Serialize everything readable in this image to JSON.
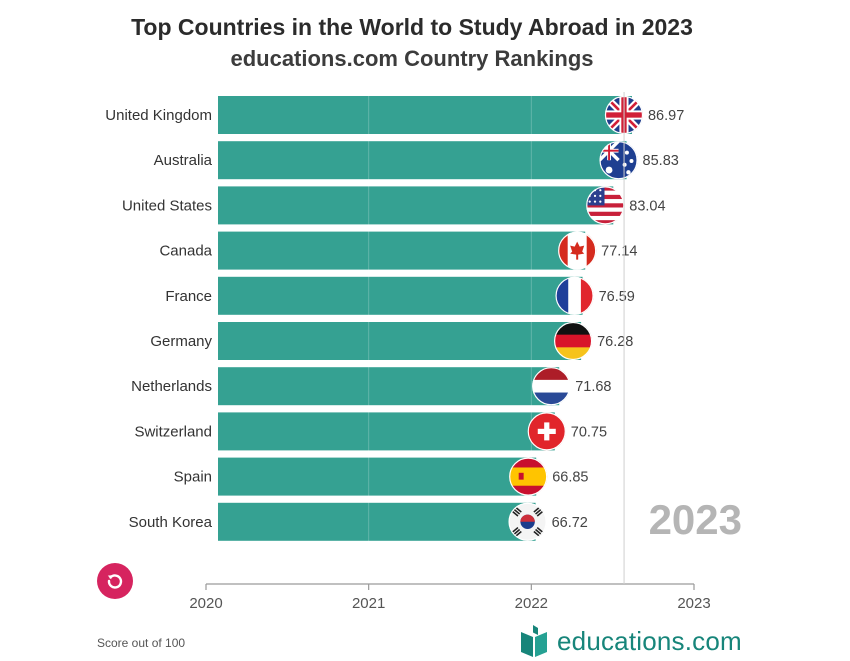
{
  "header": {
    "title": "Top Countries in the World to Study Abroad in 2023",
    "subtitle": "educations.com Country Rankings"
  },
  "colors": {
    "bar": "#35a192",
    "accent": "#d6245f",
    "brand": "#17857a",
    "year": "#b5b5b5"
  },
  "chart_data": {
    "type": "bar",
    "orientation": "horizontal",
    "animated_year": "2023",
    "title": "Top Countries in the World to Study Abroad in 2023",
    "subtitle": "educations.com Country Rankings",
    "categories": [
      "United Kingdom",
      "Australia",
      "United States",
      "Canada",
      "France",
      "Germany",
      "Netherlands",
      "Switzerland",
      "Spain",
      "South Korea"
    ],
    "values": [
      86.97,
      85.83,
      83.04,
      77.14,
      76.59,
      76.28,
      71.68,
      70.75,
      66.85,
      66.72
    ],
    "value_labels": [
      "86.97",
      "85.83",
      "83.04",
      "77.14",
      "76.59",
      "76.28",
      "71.68",
      "70.75",
      "66.85",
      "66.72"
    ],
    "flag_icons": [
      "uk-flag-icon",
      "australia-flag-icon",
      "usa-flag-icon",
      "canada-flag-icon",
      "france-flag-icon",
      "germany-flag-icon",
      "netherlands-flag-icon",
      "switzerland-flag-icon",
      "spain-flag-icon",
      "south-korea-flag-icon"
    ],
    "value_axis_range": [
      0,
      100
    ],
    "timeline_axis": {
      "ticks": [
        "2020",
        "2021",
        "2022",
        "2023"
      ],
      "range": [
        2020,
        2023
      ],
      "current": 2022.57
    },
    "xlabel": "",
    "ylabel": "",
    "grid": true
  },
  "footer": {
    "note": "Score out of 100",
    "brand": "educations.com",
    "replay_icon": "replay-icon",
    "logo_icon": "book-logo-icon"
  }
}
